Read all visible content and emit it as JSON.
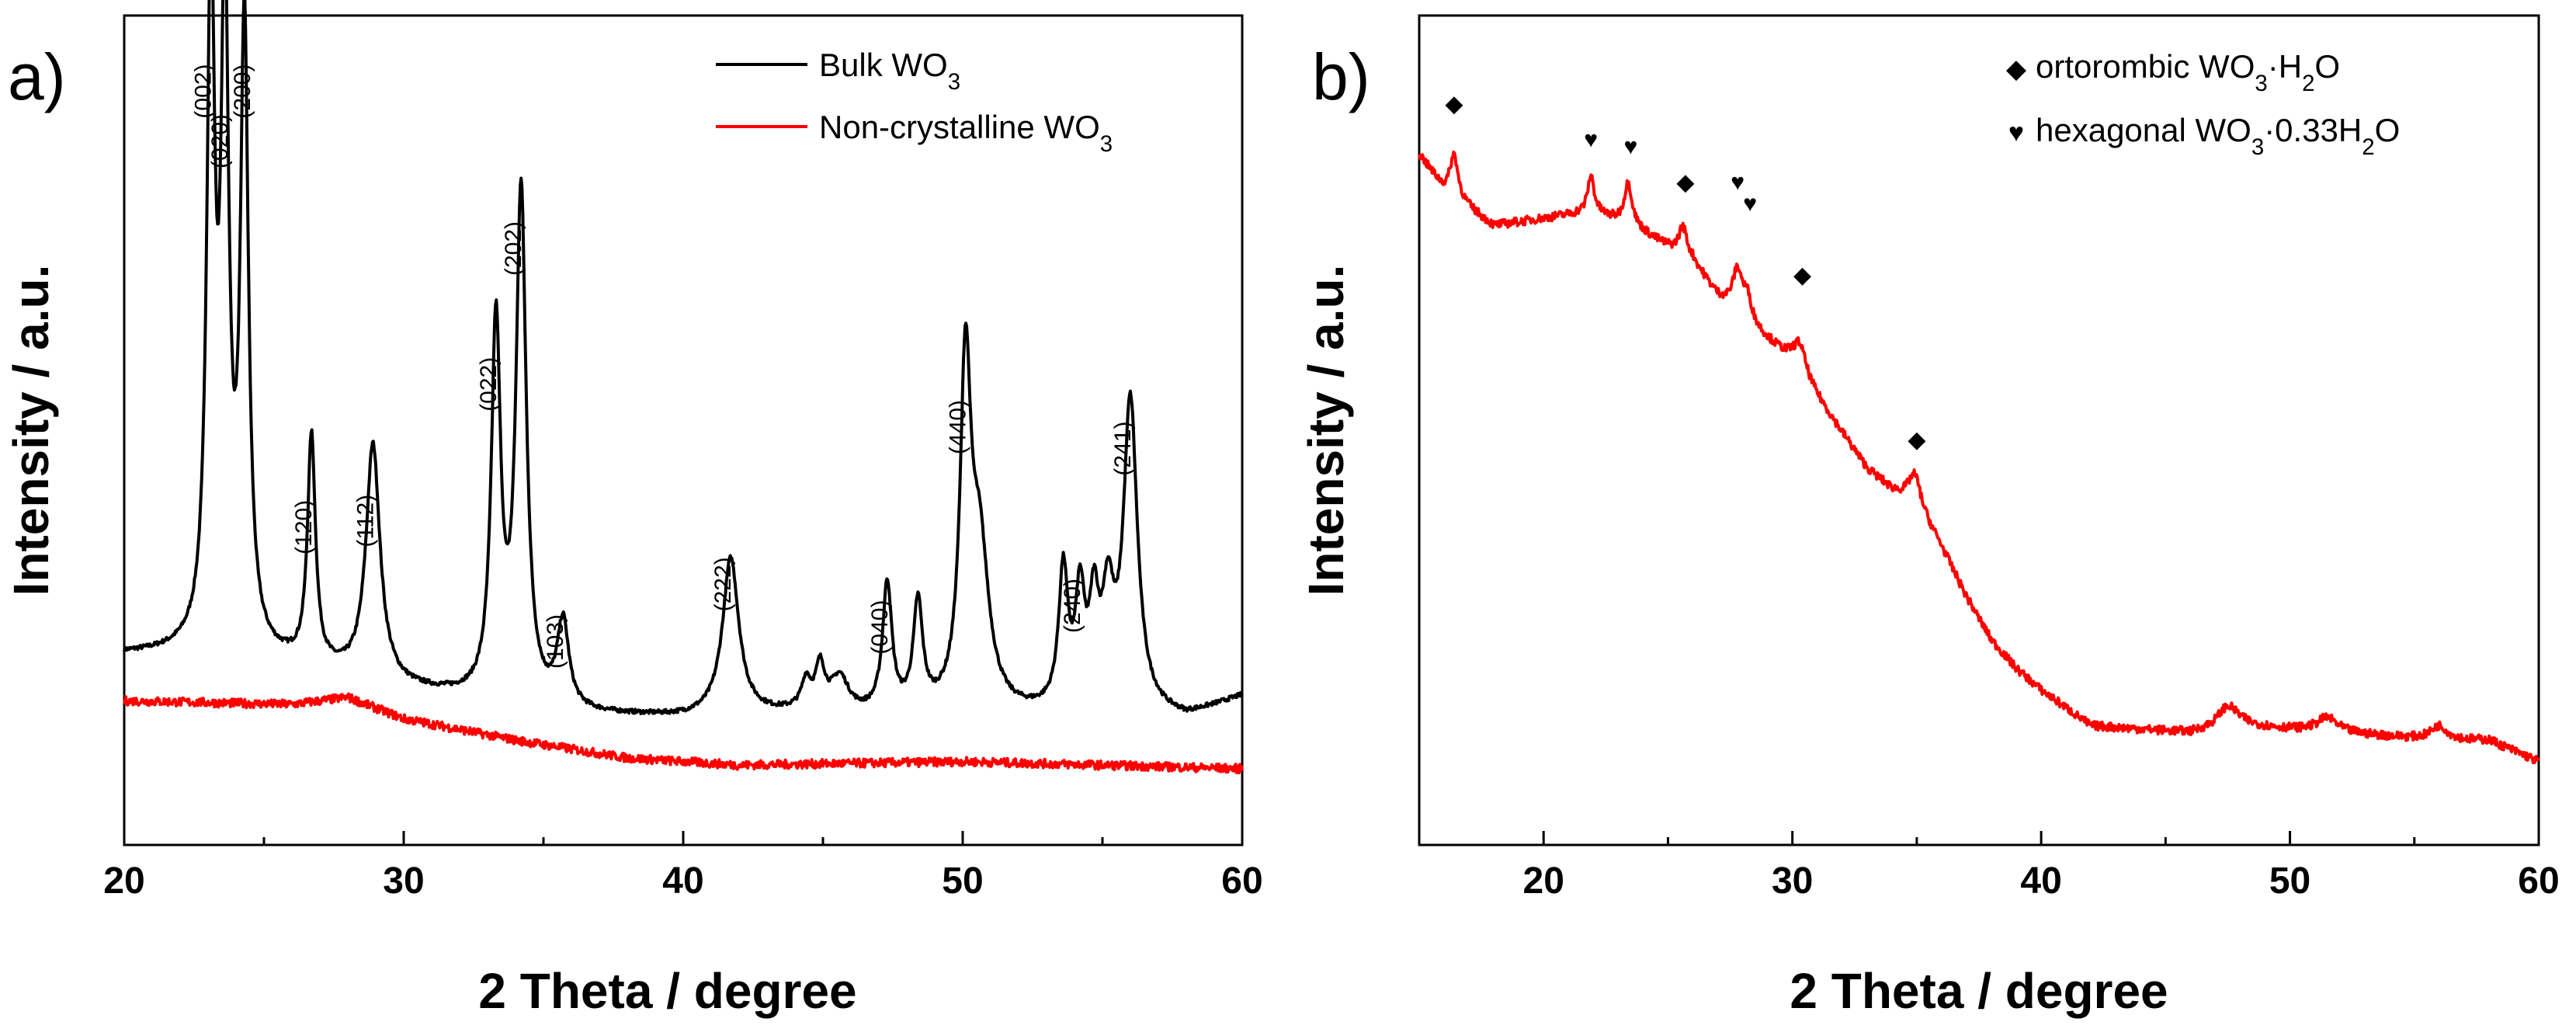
{
  "colors": {
    "bulk": "#000000",
    "noncryst": "#ff0000",
    "axis": "#000000"
  },
  "chart_data": [
    {
      "type": "line",
      "panel_label": "a)",
      "xlabel": "2 Theta / degree",
      "ylabel": "Intensity / a.u.",
      "xlim": [
        20,
        60
      ],
      "x_ticks": [
        "20",
        "30",
        "40",
        "50",
        "60"
      ],
      "y_ticks": "none",
      "legend_position": "top-right",
      "legend": [
        {
          "key": "bulk",
          "text": "Bulk WO",
          "sub": "3"
        },
        {
          "key": "noncryst",
          "text": "Non-crystalline WO",
          "sub": "3"
        }
      ],
      "series": [
        {
          "key": "bulk",
          "name": "Bulk WO3",
          "baseline": [
            [
              20,
              0.22
            ],
            [
              24,
              0.22
            ],
            [
              30,
              0.17
            ],
            [
              36,
              0.135
            ],
            [
              40,
              0.13
            ],
            [
              44,
              0.135
            ],
            [
              46,
              0.13
            ],
            [
              56,
              0.135
            ],
            [
              58,
              0.13
            ],
            [
              60,
              0.16
            ]
          ],
          "peaks": [
            [
              23.1,
              0.93,
              0.17
            ],
            [
              23.6,
              0.88,
              0.17
            ],
            [
              24.3,
              0.86,
              0.17
            ],
            [
              26.7,
              0.32,
              0.17
            ],
            [
              28.9,
              0.33,
              0.3
            ],
            [
              33.3,
              0.52,
              0.2
            ],
            [
              34.2,
              0.71,
              0.22
            ],
            [
              35.7,
              0.12,
              0.25
            ],
            [
              41.7,
              0.22,
              0.35
            ],
            [
              44.4,
              0.04,
              0.2
            ],
            [
              44.9,
              0.06,
              0.2
            ],
            [
              45.6,
              0.05,
              0.4
            ],
            [
              47.3,
              0.18,
              0.2
            ],
            [
              48.4,
              0.15,
              0.2
            ],
            [
              50.1,
              0.46,
              0.23
            ],
            [
              50.6,
              0.22,
              0.4
            ],
            [
              53.6,
              0.19,
              0.2
            ],
            [
              54.2,
              0.15,
              0.2
            ],
            [
              54.7,
              0.13,
              0.2
            ],
            [
              55.2,
              0.14,
              0.25
            ],
            [
              56.0,
              0.43,
              0.3
            ]
          ]
        },
        {
          "key": "noncryst",
          "name": "Non-crystalline WO3",
          "baseline": [
            [
              20,
              0.155
            ],
            [
              26,
              0.15
            ],
            [
              28,
              0.16
            ],
            [
              30,
              0.13
            ],
            [
              34,
              0.1
            ],
            [
              38,
              0.075
            ],
            [
              42,
              0.065
            ],
            [
              50,
              0.07
            ],
            [
              60,
              0.06
            ]
          ],
          "peaks": []
        }
      ],
      "annotations": [
        {
          "label": "(002)",
          "x": 23.1,
          "y": 0.97
        },
        {
          "label": "(020)",
          "x": 23.7,
          "y": 0.9
        },
        {
          "label": "(200)",
          "x": 24.5,
          "y": 0.97
        },
        {
          "label": "(120)",
          "x": 26.7,
          "y": 0.36
        },
        {
          "label": "(112)",
          "x": 28.9,
          "y": 0.37
        },
        {
          "label": "(022)",
          "x": 33.3,
          "y": 0.56
        },
        {
          "label": "(202)",
          "x": 34.2,
          "y": 0.75
        },
        {
          "label": "(103)",
          "x": 35.7,
          "y": 0.2
        },
        {
          "label": "(222)",
          "x": 41.7,
          "y": 0.28
        },
        {
          "label": "(040)",
          "x": 47.3,
          "y": 0.22
        },
        {
          "label": "(440)",
          "x": 50.1,
          "y": 0.5
        },
        {
          "label": "(240)",
          "x": 54.2,
          "y": 0.25
        },
        {
          "label": "(241)",
          "x": 56.0,
          "y": 0.47
        }
      ]
    },
    {
      "type": "line",
      "panel_label": "b)",
      "xlabel": "2 Theta / degree",
      "ylabel": "Intensity / a.u.",
      "xlim": [
        15,
        60
      ],
      "x_ticks": [
        "20",
        "30",
        "40",
        "50",
        "60"
      ],
      "y_ticks": "none",
      "legend_position": "top-right",
      "legend": [
        {
          "symbol": "◆",
          "pre": "ortorombic WO",
          "sub1": "3",
          "mid": "·H",
          "sub2": "2",
          "post": "O"
        },
        {
          "symbol": "♥",
          "pre": "hexagonal WO",
          "sub1": "3",
          "mid": "·0.33H",
          "sub2": "2",
          "post": "O"
        }
      ],
      "series": [
        {
          "key": "noncryst",
          "name": "",
          "baseline": [
            [
              15,
              0.92
            ],
            [
              16,
              0.87
            ],
            [
              18,
              0.82
            ],
            [
              20,
              0.83
            ],
            [
              22,
              0.84
            ],
            [
              24,
              0.81
            ],
            [
              26,
              0.77
            ],
            [
              27,
              0.72
            ],
            [
              29,
              0.66
            ],
            [
              30,
              0.63
            ],
            [
              31,
              0.58
            ],
            [
              32,
              0.53
            ],
            [
              33,
              0.48
            ],
            [
              34,
              0.45
            ],
            [
              35,
              0.43
            ],
            [
              36,
              0.37
            ],
            [
              37,
              0.3
            ],
            [
              38,
              0.24
            ],
            [
              39,
              0.2
            ],
            [
              40,
              0.17
            ],
            [
              42,
              0.12
            ],
            [
              46,
              0.11
            ],
            [
              48,
              0.12
            ],
            [
              52,
              0.11
            ],
            [
              56,
              0.1
            ],
            [
              58,
              0.1
            ],
            [
              60,
              0.07
            ]
          ],
          "peaks": [
            [
              16.4,
              0.06,
              0.2
            ],
            [
              21.9,
              0.05,
              0.15
            ],
            [
              23.4,
              0.06,
              0.2
            ],
            [
              25.6,
              0.04,
              0.2
            ],
            [
              27.8,
              0.06,
              0.25
            ],
            [
              28.2,
              0.03,
              0.2
            ],
            [
              30.3,
              0.04,
              0.3
            ],
            [
              34.9,
              0.04,
              0.3
            ],
            [
              47.5,
              0.03,
              0.5
            ],
            [
              51.5,
              0.02,
              0.5
            ],
            [
              56,
              0.02,
              0.4
            ]
          ]
        }
      ],
      "markers": [
        {
          "symbol": "◆",
          "x": 16.4,
          "y": 0.98
        },
        {
          "symbol": "♥",
          "x": 21.9,
          "y": 0.93
        },
        {
          "symbol": "♥",
          "x": 23.5,
          "y": 0.92
        },
        {
          "symbol": "◆",
          "x": 25.7,
          "y": 0.87
        },
        {
          "symbol": "♥",
          "x": 27.8,
          "y": 0.87
        },
        {
          "symbol": "♥",
          "x": 28.3,
          "y": 0.84
        },
        {
          "symbol": "◆",
          "x": 30.4,
          "y": 0.74
        },
        {
          "symbol": "◆",
          "x": 35.0,
          "y": 0.51
        }
      ]
    }
  ]
}
